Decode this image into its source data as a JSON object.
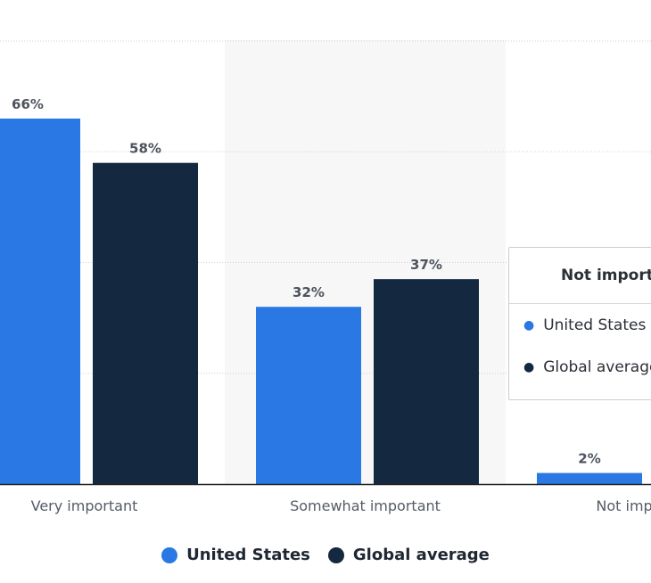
{
  "colors": {
    "united_states": "#2a78e4",
    "global_average": "#14283f",
    "grid": "#cfcfcf",
    "highlight_band": "#f7f7f7"
  },
  "chart_data": {
    "type": "bar",
    "categories": [
      "Very important",
      "Somewhat important",
      "Not important"
    ],
    "series": [
      {
        "name": "United States",
        "values": [
          66,
          32,
          2
        ],
        "labels": [
          "66%",
          "32%",
          "2%"
        ]
      },
      {
        "name": "Global average",
        "values": [
          58,
          37,
          null
        ],
        "labels": [
          "58%",
          "37%",
          ""
        ]
      }
    ],
    "ylim": [
      0,
      80
    ],
    "grid": true,
    "legend_position": "bottom"
  },
  "legend": {
    "items": [
      {
        "label": "United States"
      },
      {
        "label": "Global average"
      }
    ]
  },
  "tooltip": {
    "title": "Not important",
    "rows": [
      {
        "label": "United States"
      },
      {
        "label": "Global average"
      }
    ]
  }
}
